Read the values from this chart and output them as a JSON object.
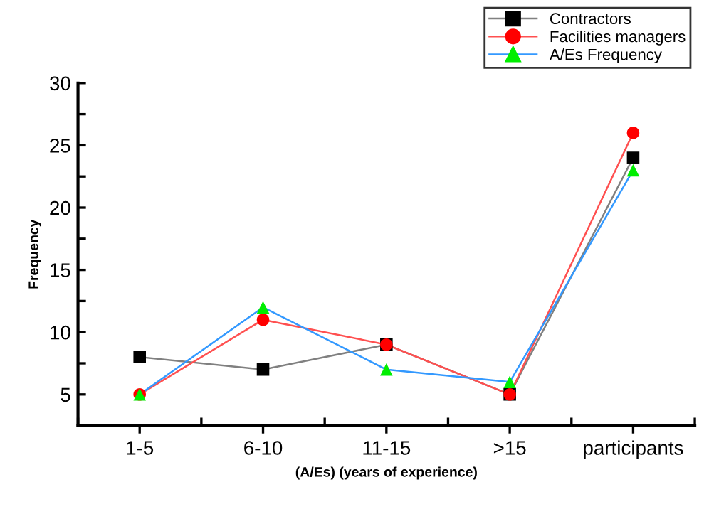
{
  "chart_data": {
    "type": "line",
    "xlabel": "(A/Es) (years of experience)",
    "ylabel": "Frequency",
    "categories": [
      "1-5",
      "6-10",
      "11-15",
      ">15",
      "participants"
    ],
    "ylim": [
      2.5,
      30
    ],
    "yticks": [
      5,
      10,
      15,
      20,
      25,
      30
    ],
    "grid": false,
    "legend": "top right",
    "line_style": "solid",
    "series": [
      {
        "name": "Contractors",
        "color": "#808080",
        "colors": [
          "#000000",
          "#000000",
          "#000000",
          "#000000",
          "#000000"
        ],
        "marker": "square",
        "values": [
          8,
          7,
          9,
          5,
          24
        ]
      },
      {
        "name": "Facilities managers",
        "color": "#ff5050",
        "colors": [
          "#ff0000",
          "#ff0000",
          "#ff0000",
          "#ff0000",
          "#ff0000"
        ],
        "marker": "circle",
        "values": [
          5,
          11,
          9,
          5,
          26
        ]
      },
      {
        "name": "A/Es Frequency",
        "color": "#3399ff",
        "colors": [
          "#00ee00",
          "#00ee00",
          "#00ee00",
          "#00ee00",
          "#00ee00"
        ],
        "marker": "triangle",
        "values": [
          5,
          12,
          7,
          6,
          23
        ]
      }
    ]
  }
}
